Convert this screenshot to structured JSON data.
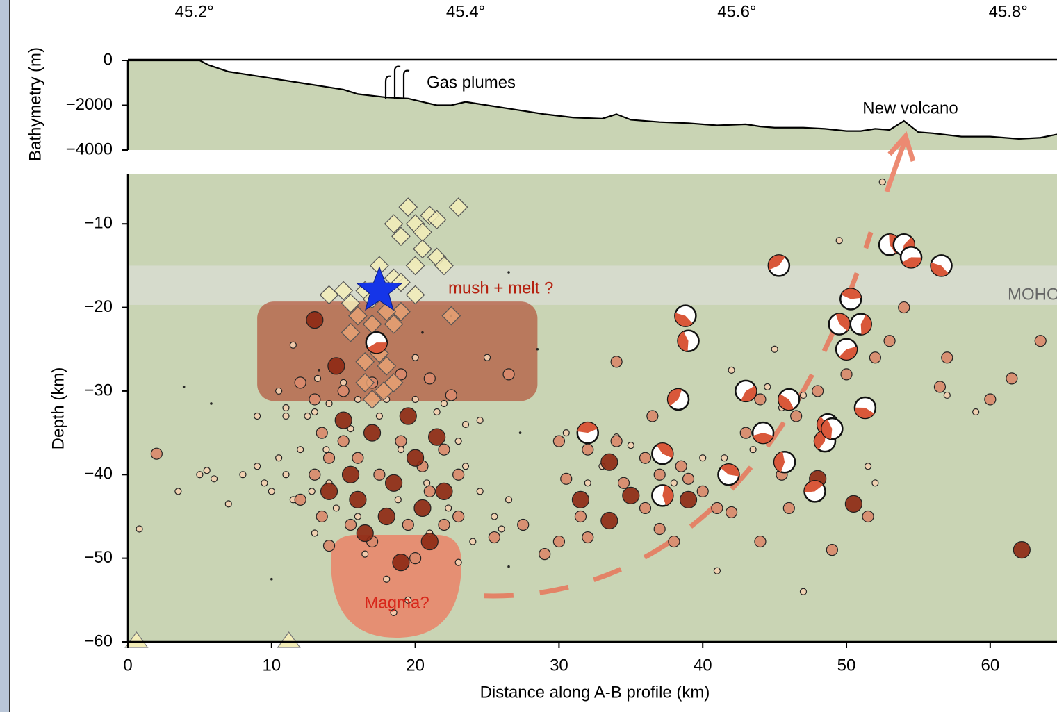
{
  "chart_data": [
    {
      "type": "area",
      "ylabel": "Bathymetry (m)",
      "color": "#000000",
      "fill": "#c9d4b4",
      "xlim": [
        0,
        64.65
      ],
      "x": [
        0,
        5,
        5.6,
        7,
        10,
        12,
        14,
        15,
        16,
        18,
        19.5,
        20.5,
        21.5,
        22.5,
        23.5,
        25,
        27,
        29,
        31,
        33,
        34,
        35,
        37,
        39,
        41,
        43,
        44,
        45,
        47,
        48.5,
        50,
        51,
        52,
        53,
        54,
        55,
        56,
        58,
        60,
        62,
        63.5,
        64.65
      ],
      "values": [
        0,
        0,
        -200,
        -500,
        -800,
        -1000,
        -1200,
        -1300,
        -1500,
        -1650,
        -1700,
        -1850,
        -2000,
        -2000,
        -1850,
        -2000,
        -2200,
        -2400,
        -2550,
        -2600,
        -2400,
        -2650,
        -2750,
        -2800,
        -2900,
        -2850,
        -2950,
        -3000,
        -3000,
        -3050,
        -3150,
        -3150,
        -3050,
        -3100,
        -2700,
        -3200,
        -3250,
        -3400,
        -3400,
        -3500,
        -3450,
        -3300
      ],
      "ylim": [
        -4000,
        0
      ],
      "yticks": [
        0,
        {
          "value": -2000,
          "label": "−2000"
        },
        {
          "value": -4000,
          "label": "−4000"
        }
      ],
      "x2lim": [
        45.151,
        45.836
      ],
      "x2ticks": [
        {
          "value": 45.2,
          "label": "45.2°"
        },
        {
          "value": 45.4,
          "label": "45.4°"
        },
        {
          "value": 45.6,
          "label": "45.6°"
        },
        {
          "value": 45.8,
          "label": "45.8°"
        }
      ],
      "annotations": [
        "Gas plumes",
        "New volcano"
      ]
    },
    {
      "type": "scatter",
      "xlabel": "Distance along A-B profile (km)",
      "ylabel": "Depth (km)",
      "background": "#c9d4b4",
      "xlim": [
        0,
        64.65
      ],
      "xticks": [
        0,
        10,
        20,
        30,
        40,
        50,
        60
      ],
      "ylim": [
        -60,
        -4
      ],
      "yticks": [
        {
          "value": -10,
          "label": "−10"
        },
        {
          "value": -20,
          "label": "−20"
        },
        {
          "value": -30,
          "label": "−30"
        },
        {
          "value": -40,
          "label": "−40"
        },
        {
          "value": -50,
          "label": "−50"
        },
        {
          "value": -60,
          "label": "−60"
        }
      ],
      "annotations": [
        "mush + melt ?",
        "Magma?",
        "MOHO"
      ],
      "series": [
        {
          "marker": "circle-small",
          "color": "#f2cfb0",
          "x": [
            8,
            9,
            9.5,
            10,
            10.5,
            11,
            11.5,
            12,
            11,
            12.5,
            13,
            14,
            16,
            18,
            20,
            22,
            23.5,
            24.5,
            23,
            13.2,
            11.5,
            10.5,
            9,
            6,
            5,
            3.5,
            7,
            24.5,
            25.5,
            24,
            23,
            21,
            15,
            20,
            25,
            26,
            41.5,
            42,
            44.5,
            45.5,
            47,
            57,
            59,
            49.5,
            52.5,
            47,
            41,
            26.5,
            13,
            16.5,
            18,
            19.5,
            18.5,
            34,
            35,
            38,
            40,
            33,
            32,
            30.5,
            43.5,
            45,
            51.5,
            52,
            19,
            17.5,
            21.5,
            15.5,
            13.8,
            12.8,
            14.5,
            16,
            18.8,
            20.8,
            22.3,
            23.5,
            14,
            0.8,
            11,
            5.5
          ],
          "y": [
            -40,
            -39,
            -41,
            -42,
            -38,
            -40,
            -43,
            -37,
            -33,
            -33,
            -32.5,
            -31.5,
            -31,
            -31,
            -31,
            -31.5,
            -34,
            -33.5,
            -36,
            -28.5,
            -24.5,
            -30,
            -33,
            -40.5,
            -40,
            -42,
            -43.5,
            -42,
            -45,
            -48,
            -50.5,
            -47,
            -29,
            -26,
            -26,
            -46.5,
            -38,
            -27.5,
            -29.5,
            -32,
            -30.5,
            -30.5,
            -32.5,
            -12,
            -5,
            -54,
            -51.5,
            -43,
            -47,
            -49.5,
            -52.5,
            -55,
            -56.5,
            -35.5,
            -36.5,
            -41,
            -38,
            -39,
            -41,
            -35,
            -37,
            -25,
            -39,
            -41,
            -37,
            -33,
            -32.5,
            -34.5,
            -37,
            -42,
            -44,
            -45,
            -43,
            -41,
            -44,
            -39,
            -41,
            -46.5,
            -32,
            -39.5
          ]
        },
        {
          "marker": "dot",
          "color": "#1a1a1a",
          "x": [
            3.9,
            5.8,
            22.5,
            27.3,
            28.5,
            20.5,
            13.3,
            26.5,
            10,
            26.5
          ],
          "y": [
            -29.5,
            -31.5,
            -21,
            -35,
            -25,
            -23,
            -27.5,
            -51,
            -52.5,
            -15.8
          ]
        },
        {
          "marker": "circle-medium",
          "color": "#d98a6c",
          "x": [
            12,
            13,
            15,
            17,
            19,
            21,
            22.5,
            13.5,
            14,
            13,
            15,
            16,
            17.5,
            19,
            20.5,
            22,
            23,
            21,
            19.5,
            17,
            15.5,
            13.5,
            14,
            12,
            20,
            22,
            23,
            26.5,
            30,
            32,
            34,
            36,
            37,
            38.5,
            36,
            34.5,
            31.5,
            32,
            37,
            38,
            40,
            41,
            43,
            44,
            45.5,
            46.5,
            48,
            50,
            52,
            54,
            57,
            56.5,
            60,
            61.5,
            63.5,
            2,
            27.5,
            29,
            30,
            25.5,
            46,
            49,
            51.5,
            53,
            44,
            30.5,
            34,
            36.5,
            42,
            39
          ],
          "y": [
            -29,
            -31,
            -30,
            -29,
            -28,
            -28.5,
            -30.5,
            -35,
            -38,
            -40,
            -36,
            -38,
            -40,
            -36,
            -39,
            -37,
            -40,
            -42,
            -46,
            -48,
            -46,
            -45,
            -48.5,
            -43,
            -50,
            -46,
            -45,
            -28,
            -36,
            -37,
            -36,
            -38,
            -40,
            -39,
            -44,
            -41,
            -45,
            -47.5,
            -46.5,
            -48,
            -42,
            -44,
            -35,
            -31,
            -40,
            -33,
            -30,
            -28,
            -26,
            -20,
            -26,
            -29.5,
            -31,
            -28.5,
            -24,
            -37.5,
            -46,
            -49.5,
            -48,
            -47.5,
            -44,
            -49,
            -45,
            -24,
            -48,
            -40.5,
            -26.5,
            -33,
            -44.5,
            -40.5
          ]
        },
        {
          "marker": "circle-large",
          "color": "#8e2a15",
          "x": [
            14.5,
            13,
            20,
            18,
            16,
            21,
            19,
            22,
            15.5,
            33.5,
            31.5,
            35,
            39,
            62.2,
            48,
            50.5,
            33.5,
            17,
            19.5,
            21.5,
            15,
            18.5,
            20.5,
            16.5,
            14
          ],
          "y": [
            -27,
            -21.5,
            -38,
            -45,
            -43,
            -48,
            -50.5,
            -42,
            -40,
            -38.5,
            -43,
            -42.5,
            -43,
            -49,
            -40.5,
            -43.5,
            -45.5,
            -35,
            -33,
            -35.5,
            -33.5,
            -41,
            -44,
            -47,
            -42
          ]
        },
        {
          "marker": "diamond",
          "color": "#f3edb8",
          "x": [
            19.5,
            23,
            21,
            20,
            18.5,
            21.5,
            20.5,
            19,
            20.5,
            21.5,
            20,
            22,
            17.5,
            18.5,
            16.5,
            15,
            14,
            17,
            19,
            20,
            15.5
          ],
          "y": [
            -8,
            -8,
            -9,
            -10,
            -10,
            -9.5,
            -11,
            -11.5,
            -13,
            -14,
            -15,
            -15,
            -15,
            -16.5,
            -18,
            -18,
            -18.5,
            -19,
            -17,
            -18.5,
            -19.5
          ]
        },
        {
          "marker": "diamond",
          "color": "#e6a173",
          "x": [
            16,
            17,
            18.5,
            15.5,
            17.5,
            16.5,
            18,
            16.5,
            17.8,
            17,
            18.5,
            22.5,
            19,
            18
          ],
          "y": [
            -21,
            -22,
            -22,
            -23,
            -25.5,
            -26.5,
            -27,
            -29,
            -30,
            -31,
            -29,
            -21,
            -20.5,
            -20.5
          ]
        },
        {
          "marker": "beachball",
          "color": "#d9583a",
          "x": [
            17.3,
            38.8,
            39,
            38.3,
            32,
            37.2,
            37.2,
            43,
            44.2,
            46,
            45.7,
            45.3,
            50.3,
            49.5,
            51,
            50,
            51.3,
            48.7,
            48.5,
            47.8,
            41.8,
            53,
            54,
            54.5,
            56.6,
            49
          ],
          "y": [
            -24.2,
            -21,
            -24,
            -31,
            -35,
            -37.5,
            -42.5,
            -30,
            -35,
            -31,
            -38.5,
            -15,
            -19,
            -22,
            -22,
            -25,
            -32,
            -34,
            -36,
            -42,
            -40,
            -12.5,
            -12.5,
            -14,
            -15,
            -34.5
          ]
        },
        {
          "marker": "star",
          "color": "#1535e8",
          "x": [
            17.5
          ],
          "y": [
            -18
          ]
        },
        {
          "marker": "triangle",
          "color": "#f3edb8",
          "x": [
            0.6,
            11.2
          ],
          "y": [
            -60,
            -60
          ]
        }
      ]
    }
  ]
}
